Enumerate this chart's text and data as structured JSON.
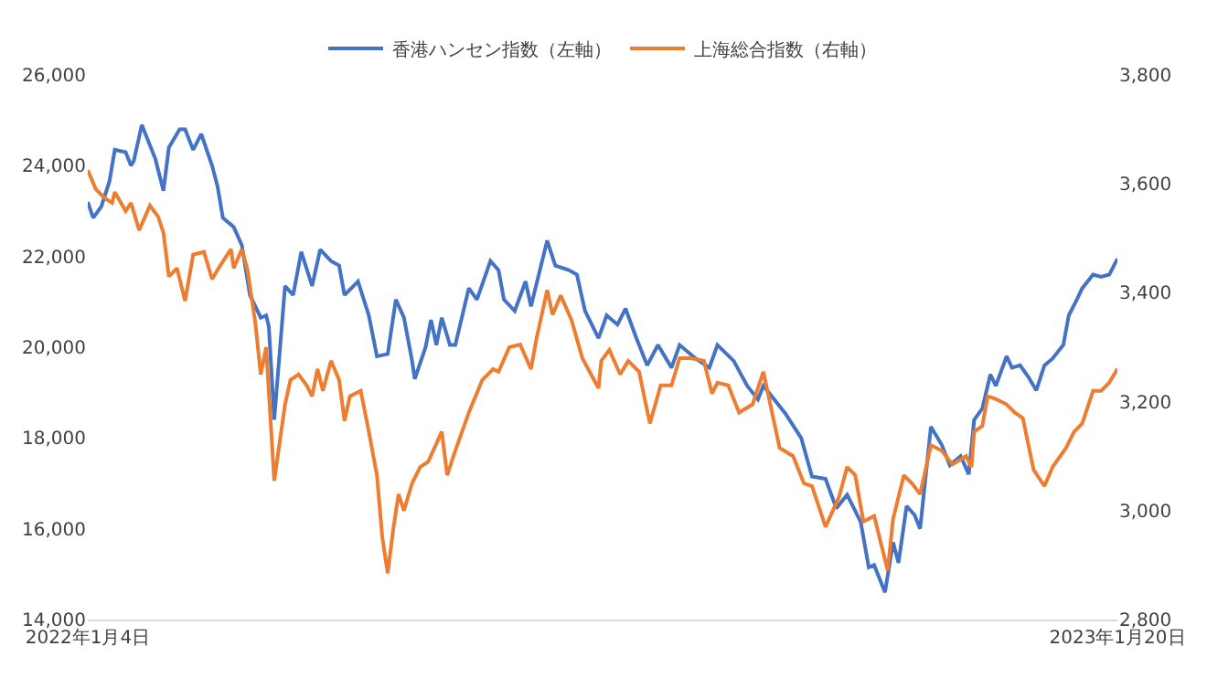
{
  "chart_data": {
    "type": "line",
    "legend": "top",
    "grid": false,
    "marker": "none",
    "line_style": "solid",
    "xlim": [
      "2022-01-04",
      "2023-01-20"
    ],
    "xticks": [
      {
        "value": "2022-01-04",
        "label": "2022年1月4日"
      },
      {
        "value": "2023-01-20",
        "label": "2023年1月20日"
      }
    ],
    "ylim": [
      14000,
      26000
    ],
    "yticks": [
      {
        "value": 14000,
        "label": "14,000"
      },
      {
        "value": 16000,
        "label": "16,000"
      },
      {
        "value": 18000,
        "label": "18,000"
      },
      {
        "value": 20000,
        "label": "20,000"
      },
      {
        "value": 22000,
        "label": "22,000"
      },
      {
        "value": 24000,
        "label": "24,000"
      },
      {
        "value": 26000,
        "label": "26,000"
      }
    ],
    "y2lim": [
      2800,
      3800
    ],
    "y2ticks": [
      {
        "value": 2800,
        "label": "2,800"
      },
      {
        "value": 3000,
        "label": "3,000"
      },
      {
        "value": 3200,
        "label": "3,200"
      },
      {
        "value": 3400,
        "label": "3,400"
      },
      {
        "value": 3600,
        "label": "3,600"
      },
      {
        "value": 3800,
        "label": "3,800"
      }
    ],
    "series": [
      {
        "name": "香港ハンセン指数（左軸）",
        "color": "#4472c4",
        "x": [
          "2022-01-04",
          "2022-01-06",
          "2022-01-09",
          "2022-01-12",
          "2022-01-14",
          "2022-01-18",
          "2022-01-20",
          "2022-01-21",
          "2022-01-24",
          "2022-01-29",
          "2022-02-01",
          "2022-02-03",
          "2022-02-07",
          "2022-02-09",
          "2022-02-12",
          "2022-02-15",
          "2022-02-19",
          "2022-02-21",
          "2022-02-23",
          "2022-02-27",
          "2022-03-02",
          "2022-03-05",
          "2022-03-09",
          "2022-03-11",
          "2022-03-12",
          "2022-03-14",
          "2022-03-18",
          "2022-03-21",
          "2022-03-24",
          "2022-03-28",
          "2022-03-31",
          "2022-04-04",
          "2022-04-07",
          "2022-04-09",
          "2022-04-14",
          "2022-04-18",
          "2022-04-21",
          "2022-04-25",
          "2022-04-28",
          "2022-05-01",
          "2022-05-04",
          "2022-05-05",
          "2022-05-09",
          "2022-05-11",
          "2022-05-13",
          "2022-05-15",
          "2022-05-18",
          "2022-05-20",
          "2022-05-25",
          "2022-05-28",
          "2022-06-02",
          "2022-06-05",
          "2022-06-07",
          "2022-06-11",
          "2022-06-15",
          "2022-06-17",
          "2022-06-23",
          "2022-06-26",
          "2022-07-01",
          "2022-07-04",
          "2022-07-07",
          "2022-07-12",
          "2022-07-15",
          "2022-07-19",
          "2022-07-22",
          "2022-07-26",
          "2022-07-30",
          "2022-08-03",
          "2022-08-08",
          "2022-08-11",
          "2022-08-17",
          "2022-08-22",
          "2022-08-25",
          "2022-08-31",
          "2022-09-05",
          "2022-09-09",
          "2022-09-11",
          "2022-09-19",
          "2022-09-25",
          "2022-09-29",
          "2022-10-04",
          "2022-10-08",
          "2022-10-12",
          "2022-10-17",
          "2022-10-20",
          "2022-10-22",
          "2022-10-26",
          "2022-10-29",
          "2022-10-31",
          "2022-11-03",
          "2022-11-06",
          "2022-11-08",
          "2022-11-12",
          "2022-11-16",
          "2022-11-19",
          "2022-11-23",
          "2022-11-26",
          "2022-11-28",
          "2022-12-01",
          "2022-12-04",
          "2022-12-06",
          "2022-12-10",
          "2022-12-12",
          "2022-12-15",
          "2022-12-18",
          "2022-12-21",
          "2022-12-24",
          "2022-12-27",
          "2022-12-31",
          "2023-01-02",
          "2023-01-05",
          "2023-01-07",
          "2023-01-11",
          "2023-01-14",
          "2023-01-17",
          "2023-01-20"
        ],
        "values": [
          23200,
          22850,
          23100,
          23650,
          24350,
          24300,
          24000,
          24100,
          24900,
          24150,
          23450,
          24400,
          24800,
          24800,
          24350,
          24700,
          24000,
          23550,
          22850,
          22650,
          22250,
          21150,
          20650,
          20700,
          20450,
          18400,
          21350,
          21150,
          22100,
          21350,
          22150,
          21900,
          21800,
          21150,
          21450,
          20700,
          19800,
          19850,
          21050,
          20650,
          19700,
          19300,
          20000,
          20600,
          20050,
          20650,
          20050,
          20050,
          21300,
          21050,
          21900,
          21700,
          21050,
          20800,
          21450,
          20900,
          22350,
          21800,
          21700,
          21600,
          20800,
          20200,
          20700,
          20500,
          20850,
          20200,
          19600,
          20050,
          19550,
          20050,
          19750,
          19550,
          20050,
          19700,
          19150,
          18850,
          19150,
          18550,
          18000,
          17150,
          17100,
          16450,
          16750,
          16150,
          15150,
          15200,
          14600,
          15700,
          15250,
          16500,
          16300,
          16000,
          18250,
          17850,
          17400,
          17600,
          17200,
          18400,
          18650,
          19400,
          19150,
          19800,
          19550,
          19600,
          19350,
          19050,
          19600,
          19750,
          20050,
          20700,
          21050,
          21300,
          21600,
          21550,
          21600,
          21950
        ]
      },
      {
        "name": "上海総合指数（右軸）",
        "color": "#ed7d31",
        "axis": "y2",
        "x": [
          "2022-01-04",
          "2022-01-07",
          "2022-01-10",
          "2022-01-13",
          "2022-01-14",
          "2022-01-18",
          "2022-01-20",
          "2022-01-23",
          "2022-01-27",
          "2022-01-30",
          "2022-02-01",
          "2022-02-03",
          "2022-02-06",
          "2022-02-09",
          "2022-02-12",
          "2022-02-16",
          "2022-02-19",
          "2022-02-22",
          "2022-02-26",
          "2022-02-27",
          "2022-03-02",
          "2022-03-04",
          "2022-03-07",
          "2022-03-09",
          "2022-03-11",
          "2022-03-14",
          "2022-03-18",
          "2022-03-20",
          "2022-03-23",
          "2022-03-26",
          "2022-03-28",
          "2022-03-30",
          "2022-04-01",
          "2022-04-04",
          "2022-04-07",
          "2022-04-09",
          "2022-04-11",
          "2022-04-15",
          "2022-04-18",
          "2022-04-21",
          "2022-04-23",
          "2022-04-25",
          "2022-04-27",
          "2022-04-29",
          "2022-05-01",
          "2022-05-04",
          "2022-05-07",
          "2022-05-10",
          "2022-05-15",
          "2022-05-17",
          "2022-05-20",
          "2022-05-25",
          "2022-05-30",
          "2022-06-03",
          "2022-06-05",
          "2022-06-09",
          "2022-06-13",
          "2022-06-17",
          "2022-06-19",
          "2022-06-23",
          "2022-06-25",
          "2022-06-28",
          "2022-07-02",
          "2022-07-06",
          "2022-07-12",
          "2022-07-13",
          "2022-07-16",
          "2022-07-20",
          "2022-07-23",
          "2022-07-27",
          "2022-07-31",
          "2022-08-04",
          "2022-08-08",
          "2022-08-11",
          "2022-08-15",
          "2022-08-20",
          "2022-08-23",
          "2022-08-25",
          "2022-08-29",
          "2022-09-02",
          "2022-09-07",
          "2022-09-11",
          "2022-09-17",
          "2022-09-22",
          "2022-09-26",
          "2022-09-29",
          "2022-10-04",
          "2022-10-09",
          "2022-10-12",
          "2022-10-15",
          "2022-10-18",
          "2022-10-22",
          "2022-10-24",
          "2022-10-27",
          "2022-10-29",
          "2022-11-02",
          "2022-11-05",
          "2022-11-08",
          "2022-11-12",
          "2022-11-16",
          "2022-11-20",
          "2022-11-25",
          "2022-11-27",
          "2022-11-28",
          "2022-12-01",
          "2022-12-03",
          "2022-12-06",
          "2022-12-10",
          "2022-12-13",
          "2022-12-16",
          "2022-12-20",
          "2022-12-24",
          "2022-12-27",
          "2023-01-01",
          "2023-01-04",
          "2023-01-07",
          "2023-01-11",
          "2023-01-14",
          "2023-01-17",
          "2023-01-20"
        ],
        "values": [
          3625,
          3590,
          3575,
          3565,
          3585,
          3550,
          3565,
          3515,
          3560,
          3540,
          3510,
          3430,
          3445,
          3385,
          3470,
          3475,
          3425,
          3450,
          3480,
          3445,
          3480,
          3445,
          3345,
          3250,
          3300,
          3055,
          3195,
          3240,
          3250,
          3230,
          3210,
          3260,
          3220,
          3275,
          3240,
          3165,
          3210,
          3220,
          3145,
          3065,
          2950,
          2885,
          2965,
          3030,
          3000,
          3050,
          3080,
          3090,
          3145,
          3065,
          3110,
          3180,
          3240,
          3260,
          3255,
          3300,
          3305,
          3260,
          3315,
          3405,
          3360,
          3395,
          3350,
          3280,
          3225,
          3275,
          3295,
          3250,
          3275,
          3255,
          3160,
          3230,
          3230,
          3280,
          3280,
          3275,
          3215,
          3235,
          3230,
          3180,
          3195,
          3255,
          3115,
          3100,
          3050,
          3045,
          2970,
          3025,
          3080,
          3065,
          2980,
          2990,
          2950,
          2890,
          2985,
          3065,
          3050,
          3030,
          3120,
          3110,
          3085,
          3100,
          3080,
          3145,
          3155,
          3210,
          3205,
          3195,
          3180,
          3170,
          3075,
          3045,
          3080,
          3115,
          3145,
          3160,
          3220,
          3220,
          3235,
          3260
        ]
      }
    ]
  }
}
